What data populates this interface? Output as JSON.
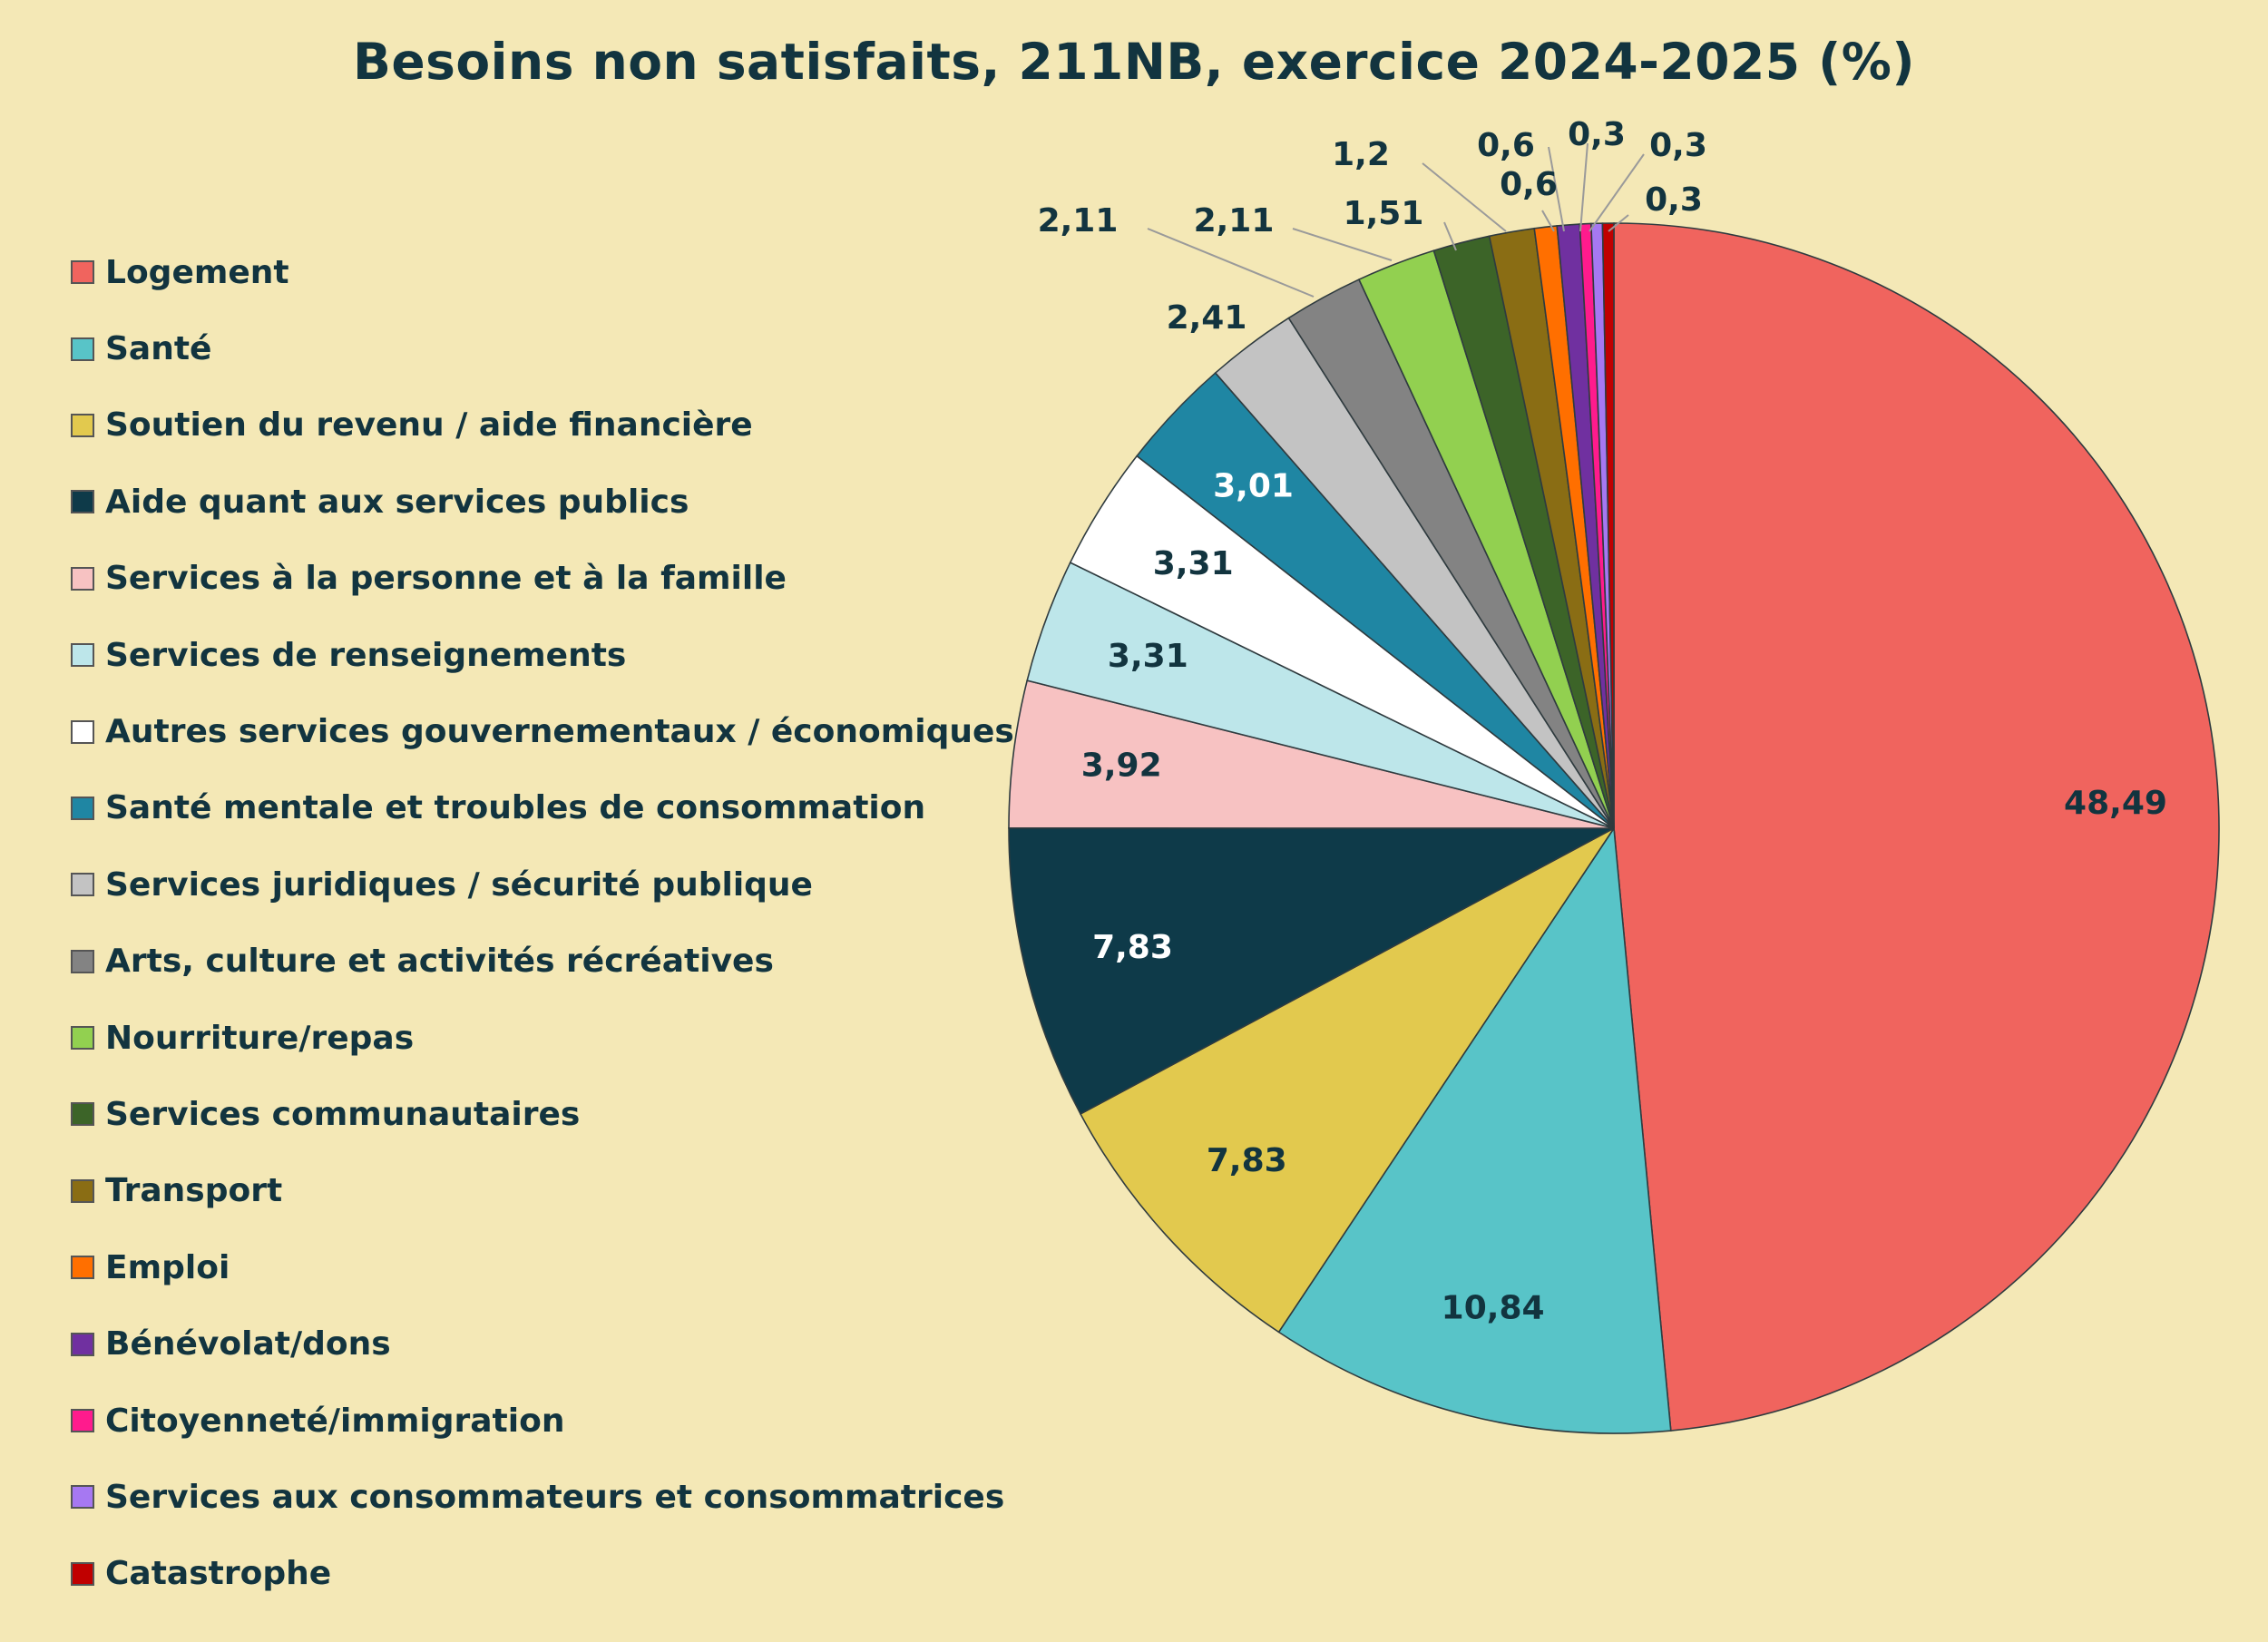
{
  "chart_data": {
    "type": "pie",
    "title": "Besoins non satisfaits, 211NB, exercice 2024-2025 (%)",
    "slices": [
      {
        "label": "Logement",
        "value": 48.49,
        "display": "48,49",
        "color": "#f0645e"
      },
      {
        "label": "Santé",
        "value": 10.84,
        "display": "10,84",
        "color": "#58c4c8"
      },
      {
        "label": "Soutien du revenu / aide financière",
        "value": 7.83,
        "display": "7,83",
        "color": "#e2c94e"
      },
      {
        "label": "Aide quant aux services publics",
        "value": 7.83,
        "display": "7,83",
        "color": "#0e3a49"
      },
      {
        "label": "Services à la personne et à la famille",
        "value": 3.92,
        "display": "3,92",
        "color": "#f7c2c2"
      },
      {
        "label": "Services de renseignements",
        "value": 3.31,
        "display": "3,31",
        "color": "#bde6ea"
      },
      {
        "label": "Autres services gouvernementaux / économiques",
        "value": 3.31,
        "display": "3,31",
        "color": "#ffffff"
      },
      {
        "label": "Santé mentale et troubles de consommation",
        "value": 3.01,
        "display": "3,01",
        "color": "#1f86a3"
      },
      {
        "label": "Services juridiques / sécurité publique",
        "value": 2.41,
        "display": "2,41",
        "color": "#c3c3c3"
      },
      {
        "label": "Arts, culture et activités récréatives",
        "value": 2.11,
        "display": "2,11",
        "color": "#838383"
      },
      {
        "label": "Nourriture/repas",
        "value": 2.11,
        "display": "2,11",
        "color": "#92d050"
      },
      {
        "label": "Services communautaires",
        "value": 1.51,
        "display": "1,51",
        "color": "#3c6428"
      },
      {
        "label": "Transport",
        "value": 1.2,
        "display": "1,2",
        "color": "#8a6d14"
      },
      {
        "label": "Emploi",
        "value": 0.6,
        "display": "0,6",
        "color": "#ff6f00"
      },
      {
        "label": "Bénévolat/dons",
        "value": 0.6,
        "display": "0,6",
        "color": "#7030a0"
      },
      {
        "label": "Citoyenneté/immigration",
        "value": 0.3,
        "display": "0,3",
        "color": "#ff1b8d"
      },
      {
        "label": "Services aux consommateurs et consommatrices",
        "value": 0.3,
        "display": "0,3",
        "color": "#a678f2"
      },
      {
        "label": "Catastrophe",
        "value": 0.3,
        "display": "0,3",
        "color": "#c00000"
      }
    ],
    "legend_position": "left",
    "start_angle": "12 o'clock",
    "direction": "clockwise"
  }
}
